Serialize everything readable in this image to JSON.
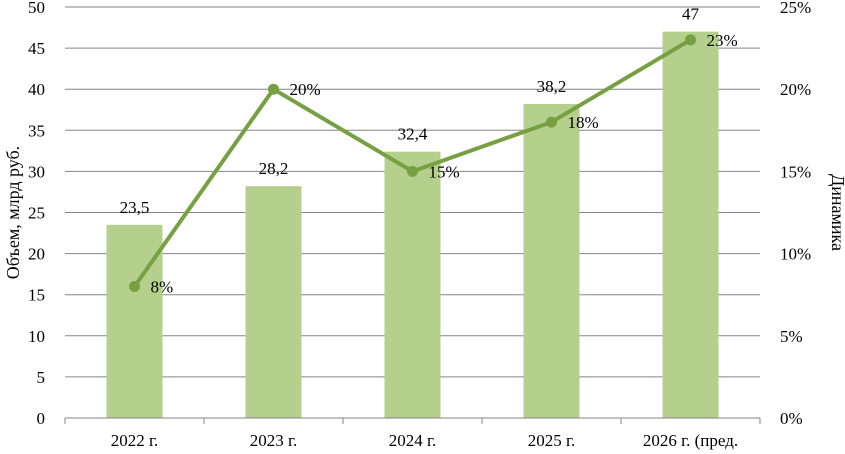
{
  "chart_data": {
    "type": "bar+line",
    "categories": [
      "2022 г.",
      "2023 г.",
      "2024 г.",
      "2025 г.",
      "2026 г. (пред."
    ],
    "series": [
      {
        "type": "bar",
        "axis": "left",
        "values": [
          23.5,
          28.2,
          32.4,
          38.2,
          47
        ],
        "labels": [
          "23,5",
          "28,2",
          "32,4",
          "38,2",
          "47"
        ],
        "color": "#b5cf8d"
      },
      {
        "type": "line",
        "axis": "right",
        "values": [
          8,
          20,
          15,
          18,
          23
        ],
        "labels": [
          "8%",
          "20%",
          "15%",
          "18%",
          "23%"
        ],
        "color": "#77a043"
      }
    ],
    "ylabel": "Объем, млрд руб.",
    "y2label": "Динамика",
    "ylim": [
      0,
      50
    ],
    "yticks": [
      "0",
      "5",
      "10",
      "15",
      "20",
      "25",
      "30",
      "35",
      "40",
      "45",
      "50"
    ],
    "y2lim": [
      0,
      25
    ],
    "y2ticks": [
      "0%",
      "5%",
      "10%",
      "15%",
      "20%",
      "25%"
    ],
    "grid": "horizontal",
    "legend": "none"
  }
}
